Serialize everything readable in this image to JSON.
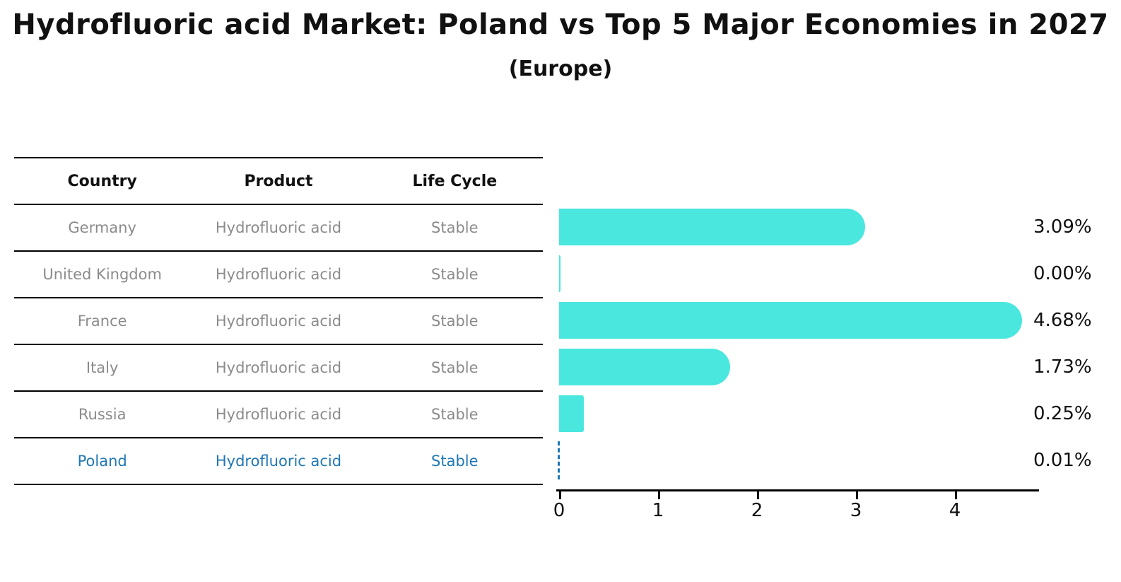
{
  "title": "Hydrofluoric acid Market: Poland vs Top 5 Major Economies in 2027",
  "subtitle": "(Europe)",
  "table": {
    "columns": [
      "Country",
      "Product",
      "Life Cycle"
    ],
    "rows": [
      {
        "country": "Germany",
        "product": "Hydrofluoric acid",
        "life_cycle": "Stable",
        "highlight": false
      },
      {
        "country": "United Kingdom",
        "product": "Hydrofluoric acid",
        "life_cycle": "Stable",
        "highlight": false
      },
      {
        "country": "France",
        "product": "Hydrofluoric acid",
        "life_cycle": "Stable",
        "highlight": false
      },
      {
        "country": "Italy",
        "product": "Hydrofluoric acid",
        "life_cycle": "Stable",
        "highlight": false
      },
      {
        "country": "Russia",
        "product": "Hydrofluoric acid",
        "life_cycle": "Stable",
        "highlight": true
      }
    ],
    "highlight_row": {
      "country": "Poland",
      "product": "Hydrofluoric acid",
      "life_cycle": "Stable"
    }
  },
  "chart_data": {
    "type": "bar",
    "orientation": "horizontal",
    "categories": [
      "Germany",
      "United Kingdom",
      "France",
      "Italy",
      "Russia",
      "Poland"
    ],
    "values": [
      3.09,
      0.0,
      4.68,
      1.73,
      0.25,
      0.01
    ],
    "value_labels": [
      "3.09%",
      "0.00%",
      "4.68%",
      "1.73%",
      "0.25%",
      "0.01%"
    ],
    "x_ticks": [
      0,
      1,
      2,
      3,
      4
    ],
    "xlim": [
      0,
      4.88
    ],
    "grid": false,
    "legend": "none",
    "highlight_index": 5,
    "highlight_style": "dashed-outline-bar",
    "title": "Hydrofluoric acid Market: Poland vs Top 5 Major Economies in 2027",
    "subtitle": "(Europe)",
    "xlabel": "",
    "ylabel": ""
  },
  "colors": {
    "bar": "#4AE7DE",
    "highlight": "#1f77b4",
    "table_text": "#8b8b8b",
    "header_text": "#111111",
    "axis": "#000000"
  }
}
